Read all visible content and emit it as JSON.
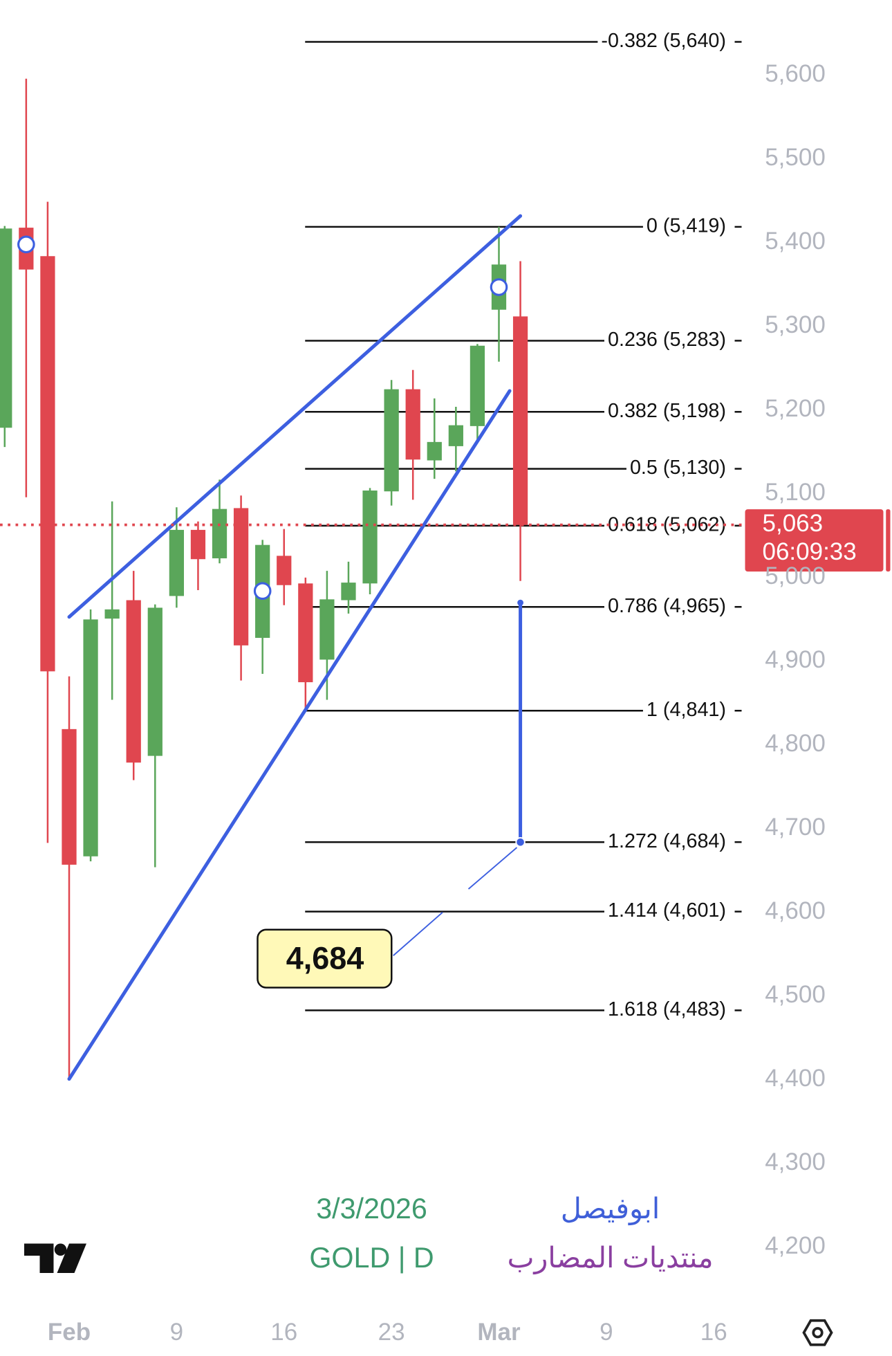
{
  "chart_data": {
    "type": "candlestick",
    "categories": [
      null,
      null,
      null,
      "Feb",
      null,
      null,
      null,
      null,
      "9",
      null,
      null,
      null,
      null,
      "16",
      null,
      null,
      null,
      null,
      "23",
      null,
      null,
      null,
      null,
      "Mar",
      null,
      null,
      null,
      null,
      "9",
      null,
      null,
      null,
      null,
      "16",
      null
    ],
    "open": [
      5179,
      5418,
      5384,
      4819,
      4667,
      4951,
      4973,
      4787,
      4978,
      5057,
      5023,
      5083,
      4928,
      5026,
      4993,
      4902,
      4973,
      4993,
      5103,
      5225,
      5140,
      5157,
      5181,
      5320,
      5312,
      null,
      null,
      null,
      null,
      null,
      null,
      null,
      null,
      null,
      null
    ],
    "high": [
      5420,
      5596,
      5449,
      4882,
      4962,
      5091,
      5008,
      4968,
      5084,
      5067,
      5117,
      5098,
      5045,
      5058,
      5000,
      5008,
      5019,
      5107,
      5236,
      5248,
      5214,
      5204,
      5279,
      5419,
      5378,
      null,
      null,
      null,
      null,
      null,
      null,
      null,
      null,
      null,
      null
    ],
    "low": [
      5156,
      5096,
      4683,
      4401,
      4661,
      4854,
      4758,
      4654,
      4964,
      4985,
      5017,
      4877,
      4885,
      4967,
      4840,
      4854,
      4957,
      4980,
      5086,
      5093,
      5118,
      5127,
      5161,
      5258,
      4996,
      null,
      null,
      null,
      null,
      null,
      null,
      null,
      null,
      null,
      null
    ],
    "close": [
      5417,
      5368,
      4888,
      4657,
      4950,
      4962,
      4779,
      4964,
      5057,
      5022,
      5082,
      4919,
      5039,
      4991,
      4875,
      4974,
      4994,
      5104,
      5225,
      5141,
      5162,
      5182,
      5277,
      5374,
      5063,
      null,
      null,
      null,
      null,
      null,
      null,
      null,
      null,
      null,
      null
    ],
    "up_color": "#5aa65a",
    "down_color": "#e0464f",
    "ylim": [
      4130,
      5690
    ],
    "yticks": [
      {
        "value": 4200,
        "label": "4,200"
      },
      {
        "value": 4300,
        "label": "4,300"
      },
      {
        "value": 4400,
        "label": "4,400"
      },
      {
        "value": 4500,
        "label": "4,500"
      },
      {
        "value": 4600,
        "label": "4,600"
      },
      {
        "value": 4700,
        "label": "4,700"
      },
      {
        "value": 4800,
        "label": "4,800"
      },
      {
        "value": 4900,
        "label": "4,900"
      },
      {
        "value": 5000,
        "label": "5,000"
      },
      {
        "value": 5100,
        "label": "5,100"
      },
      {
        "value": 5200,
        "label": "5,200"
      },
      {
        "value": 5300,
        "label": "5,300"
      },
      {
        "value": 5400,
        "label": "5,400"
      },
      {
        "value": 5500,
        "label": "5,500"
      },
      {
        "value": 5600,
        "label": "5,600"
      }
    ],
    "fib_levels": [
      {
        "price": 5640,
        "label": "-0.382 (5,640)"
      },
      {
        "price": 5419,
        "label": "0 (5,419)"
      },
      {
        "price": 5283,
        "label": "0.236 (5,283)"
      },
      {
        "price": 5198,
        "label": "0.382 (5,198)"
      },
      {
        "price": 5130,
        "label": "0.5 (5,130)"
      },
      {
        "price": 5062,
        "label": "0.618 (5,062)"
      },
      {
        "price": 4965,
        "label": "0.786 (4,965)"
      },
      {
        "price": 4841,
        "label": "1 (4,841)"
      },
      {
        "price": 4684,
        "label": "1.272 (4,684)"
      },
      {
        "price": 4601,
        "label": "1.414 (4,601)"
      },
      {
        "price": 4483,
        "label": "1.618 (4,483)"
      }
    ],
    "line_color": "#3d5fe0",
    "channel": [
      {
        "x": [
          3,
          24
        ],
        "y": [
          4953,
          5432
        ]
      },
      {
        "x": [
          3,
          23.5
        ],
        "y": [
          4401,
          5223
        ]
      }
    ],
    "markers": [
      {
        "x": 1,
        "y": 5398
      },
      {
        "x": 12,
        "y": 4984
      },
      {
        "x": 23,
        "y": 5347
      }
    ],
    "target": {
      "x": 24,
      "from": 4970,
      "value": 4684,
      "label": "4,684"
    },
    "last_price": {
      "value": 5063,
      "label": "5,063",
      "countdown": "06:09:33"
    },
    "watermark": {
      "date": "3/3/2026",
      "symbol": "GOLD | D",
      "author": "ابوفيصل",
      "forum": "منتديات المضارب"
    }
  }
}
